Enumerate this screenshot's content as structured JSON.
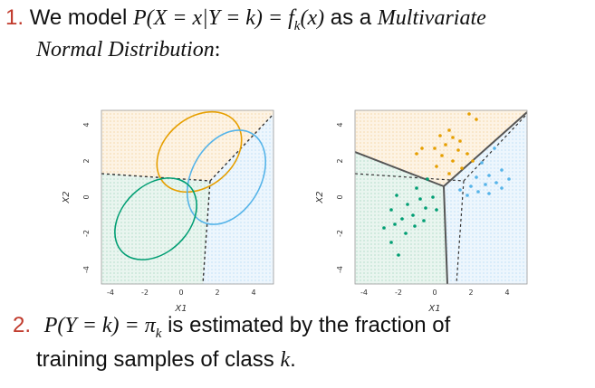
{
  "item1": {
    "number": "1.",
    "text_pre": "We model ",
    "math": "P(X = x|Y = k) = f",
    "math_sub": "k",
    "math_post": "(x)",
    "text_post": " as a ",
    "emph": "Multivariate",
    "emph2": "Normal Distribution",
    "colon": ":"
  },
  "item2": {
    "number": "2.",
    "math": "P(Y = k) = π",
    "math_sub": "k",
    "text": " is estimated by the fraction of",
    "line2_text": "training  samples of class ",
    "line2_var": "k",
    "line2_end": "."
  },
  "plots": {
    "left": {
      "ylabel": "X2",
      "xlabel": "X1",
      "xticks": [
        "-4",
        "-2",
        "0",
        "2",
        "4"
      ],
      "yticks": [
        "-4",
        "-2",
        "0",
        "2",
        "4"
      ]
    },
    "right": {
      "ylabel": "X2",
      "xlabel": "X1",
      "xticks": [
        "-4",
        "-2",
        "0",
        "2",
        "4"
      ],
      "yticks": [
        "-4",
        "-2",
        "0",
        "2",
        "4"
      ]
    },
    "colors": {
      "orange": "#E69F00",
      "blue": "#56B4E9",
      "green": "#009E73",
      "bg_orange": "#fdf2e2",
      "bg_blue": "#eaf5fd",
      "bg_green": "#e6f4ee"
    }
  }
}
